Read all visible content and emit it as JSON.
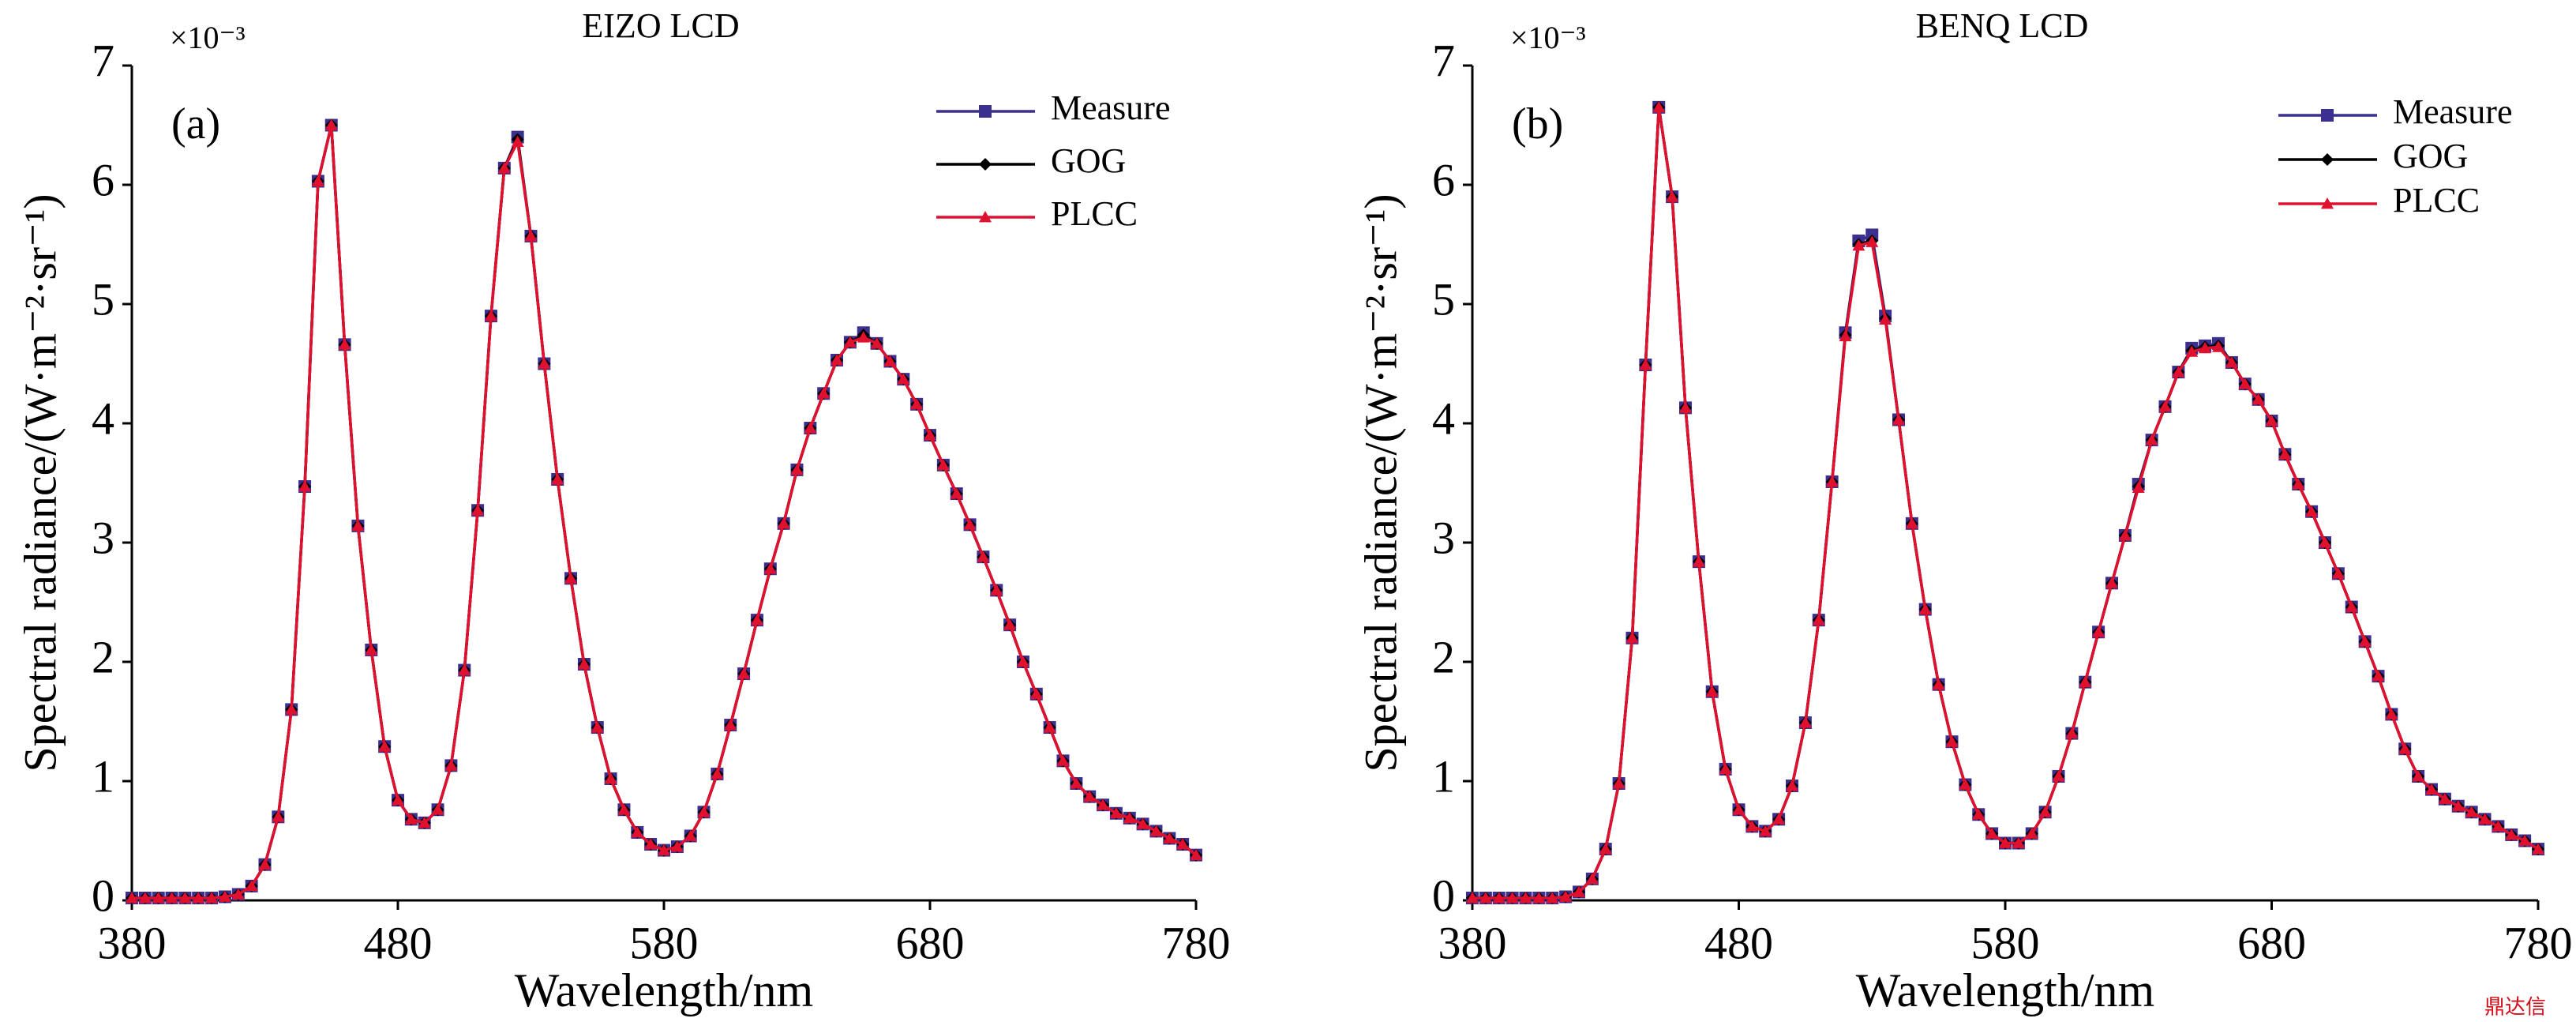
{
  "watermark": "鼎达信",
  "chart_data": [
    {
      "type": "line",
      "title": "EIZO LCD",
      "panel": "(a)",
      "multiplier": "×10⁻³",
      "x_label": "Wavelength/nm",
      "y_label": "Spectral radiance/(W·m⁻²·sr⁻¹)",
      "xlim": [
        380,
        780
      ],
      "xticks": [
        380,
        480,
        580,
        680,
        780
      ],
      "ylim": [
        0,
        7
      ],
      "yticks": [
        0,
        1,
        2,
        3,
        4,
        5,
        6,
        7
      ],
      "x": [
        380,
        385,
        390,
        395,
        400,
        405,
        410,
        415,
        420,
        425,
        430,
        435,
        440,
        445,
        450,
        455,
        460,
        465,
        470,
        475,
        480,
        485,
        490,
        495,
        500,
        505,
        510,
        515,
        520,
        525,
        530,
        535,
        540,
        545,
        550,
        555,
        560,
        565,
        570,
        575,
        580,
        585,
        590,
        595,
        600,
        605,
        610,
        615,
        620,
        625,
        630,
        635,
        640,
        645,
        650,
        655,
        660,
        665,
        670,
        675,
        680,
        685,
        690,
        695,
        700,
        705,
        710,
        715,
        720,
        725,
        730,
        735,
        740,
        745,
        750,
        755,
        760,
        765,
        770,
        775,
        780
      ],
      "series": [
        {
          "name": "Measure",
          "color": "#3b2f8f",
          "marker": "square",
          "values": [
            0.02,
            0.02,
            0.02,
            0.02,
            0.02,
            0.02,
            0.02,
            0.03,
            0.05,
            0.12,
            0.3,
            0.7,
            1.6,
            3.47,
            6.03,
            6.5,
            4.66,
            3.14,
            2.1,
            1.29,
            0.84,
            0.68,
            0.65,
            0.76,
            1.13,
            1.93,
            3.27,
            4.9,
            6.14,
            6.4,
            5.57,
            4.5,
            3.53,
            2.7,
            1.98,
            1.45,
            1.02,
            0.76,
            0.57,
            0.47,
            0.42,
            0.45,
            0.54,
            0.74,
            1.06,
            1.47,
            1.9,
            2.35,
            2.78,
            3.16,
            3.61,
            3.96,
            4.25,
            4.53,
            4.68,
            4.76,
            4.67,
            4.52,
            4.37,
            4.16,
            3.9,
            3.65,
            3.41,
            3.15,
            2.88,
            2.6,
            2.31,
            2.0,
            1.73,
            1.45,
            1.17,
            0.98,
            0.87,
            0.8,
            0.73,
            0.69,
            0.64,
            0.58,
            0.52,
            0.47,
            0.38
          ]
        },
        {
          "name": "GOG",
          "color": "#000000",
          "marker": "diamond",
          "values": [
            0.02,
            0.02,
            0.02,
            0.02,
            0.02,
            0.02,
            0.02,
            0.03,
            0.05,
            0.12,
            0.3,
            0.7,
            1.6,
            3.47,
            6.03,
            6.5,
            4.66,
            3.14,
            2.1,
            1.29,
            0.84,
            0.68,
            0.65,
            0.76,
            1.13,
            1.93,
            3.27,
            4.9,
            6.14,
            6.38,
            5.57,
            4.5,
            3.53,
            2.7,
            1.98,
            1.45,
            1.02,
            0.76,
            0.57,
            0.47,
            0.42,
            0.45,
            0.54,
            0.74,
            1.06,
            1.47,
            1.9,
            2.35,
            2.78,
            3.16,
            3.61,
            3.96,
            4.25,
            4.53,
            4.68,
            4.74,
            4.67,
            4.52,
            4.37,
            4.16,
            3.9,
            3.65,
            3.41,
            3.15,
            2.88,
            2.6,
            2.31,
            2.0,
            1.73,
            1.45,
            1.17,
            0.98,
            0.87,
            0.8,
            0.73,
            0.69,
            0.64,
            0.58,
            0.52,
            0.47,
            0.38
          ]
        },
        {
          "name": "PLCC",
          "color": "#e0102f",
          "marker": "triangle",
          "values": [
            0.02,
            0.02,
            0.02,
            0.02,
            0.02,
            0.02,
            0.02,
            0.03,
            0.05,
            0.12,
            0.3,
            0.7,
            1.6,
            3.47,
            6.03,
            6.5,
            4.66,
            3.14,
            2.1,
            1.29,
            0.84,
            0.68,
            0.65,
            0.76,
            1.13,
            1.93,
            3.27,
            4.9,
            6.14,
            6.36,
            5.57,
            4.5,
            3.53,
            2.7,
            1.98,
            1.45,
            1.02,
            0.76,
            0.57,
            0.47,
            0.42,
            0.45,
            0.54,
            0.74,
            1.06,
            1.47,
            1.9,
            2.35,
            2.78,
            3.16,
            3.61,
            3.96,
            4.25,
            4.53,
            4.68,
            4.72,
            4.67,
            4.52,
            4.37,
            4.16,
            3.9,
            3.65,
            3.41,
            3.15,
            2.88,
            2.6,
            2.31,
            2.0,
            1.73,
            1.45,
            1.17,
            0.98,
            0.87,
            0.8,
            0.73,
            0.69,
            0.64,
            0.58,
            0.52,
            0.47,
            0.38
          ]
        }
      ]
    },
    {
      "type": "line",
      "title": "BENQ LCD",
      "panel": "(b)",
      "multiplier": "×10⁻³",
      "x_label": "Wavelength/nm",
      "y_label": "Spectral radiance/(W·m⁻²·sr⁻¹)",
      "xlim": [
        380,
        780
      ],
      "xticks": [
        380,
        480,
        580,
        680,
        780
      ],
      "ylim": [
        0,
        7
      ],
      "yticks": [
        0,
        1,
        2,
        3,
        4,
        5,
        6,
        7
      ],
      "x": [
        380,
        385,
        390,
        395,
        400,
        405,
        410,
        415,
        420,
        425,
        430,
        435,
        440,
        445,
        450,
        455,
        460,
        465,
        470,
        475,
        480,
        485,
        490,
        495,
        500,
        505,
        510,
        515,
        520,
        525,
        530,
        535,
        540,
        545,
        550,
        555,
        560,
        565,
        570,
        575,
        580,
        585,
        590,
        595,
        600,
        605,
        610,
        615,
        620,
        625,
        630,
        635,
        640,
        645,
        650,
        655,
        660,
        665,
        670,
        675,
        680,
        685,
        690,
        695,
        700,
        705,
        710,
        715,
        720,
        725,
        730,
        735,
        740,
        745,
        750,
        755,
        760,
        765,
        770,
        775,
        780
      ],
      "series": [
        {
          "name": "Measure",
          "color": "#3b2f8f",
          "marker": "square",
          "values": [
            0.02,
            0.02,
            0.02,
            0.02,
            0.02,
            0.02,
            0.02,
            0.03,
            0.07,
            0.18,
            0.43,
            0.98,
            2.2,
            4.49,
            6.65,
            5.9,
            4.13,
            2.84,
            1.75,
            1.1,
            0.76,
            0.62,
            0.58,
            0.68,
            0.96,
            1.49,
            2.35,
            3.51,
            4.76,
            5.53,
            5.58,
            4.9,
            4.03,
            3.16,
            2.44,
            1.81,
            1.33,
            0.97,
            0.72,
            0.56,
            0.48,
            0.48,
            0.56,
            0.74,
            1.04,
            1.4,
            1.83,
            2.25,
            2.66,
            3.06,
            3.49,
            3.86,
            4.14,
            4.43,
            4.63,
            4.65,
            4.67,
            4.51,
            4.33,
            4.2,
            4.02,
            3.74,
            3.49,
            3.26,
            3.0,
            2.74,
            2.46,
            2.17,
            1.88,
            1.56,
            1.27,
            1.04,
            0.93,
            0.85,
            0.79,
            0.74,
            0.68,
            0.62,
            0.55,
            0.5,
            0.43
          ]
        },
        {
          "name": "GOG",
          "color": "#000000",
          "marker": "diamond",
          "values": [
            0.02,
            0.02,
            0.02,
            0.02,
            0.02,
            0.02,
            0.02,
            0.03,
            0.07,
            0.18,
            0.43,
            0.98,
            2.2,
            4.49,
            6.65,
            5.9,
            4.13,
            2.84,
            1.75,
            1.1,
            0.76,
            0.62,
            0.58,
            0.68,
            0.96,
            1.49,
            2.35,
            3.51,
            4.74,
            5.5,
            5.53,
            4.88,
            4.03,
            3.16,
            2.44,
            1.81,
            1.33,
            0.97,
            0.72,
            0.56,
            0.48,
            0.48,
            0.56,
            0.74,
            1.04,
            1.4,
            1.83,
            2.25,
            2.66,
            3.06,
            3.47,
            3.86,
            4.14,
            4.43,
            4.61,
            4.64,
            4.65,
            4.51,
            4.33,
            4.2,
            4.02,
            3.74,
            3.49,
            3.26,
            3.0,
            2.74,
            2.46,
            2.17,
            1.88,
            1.56,
            1.27,
            1.04,
            0.93,
            0.85,
            0.79,
            0.74,
            0.68,
            0.62,
            0.55,
            0.5,
            0.43
          ]
        },
        {
          "name": "PLCC",
          "color": "#e0102f",
          "marker": "triangle",
          "values": [
            0.02,
            0.02,
            0.02,
            0.02,
            0.02,
            0.02,
            0.02,
            0.03,
            0.07,
            0.18,
            0.43,
            0.98,
            2.2,
            4.49,
            6.65,
            5.9,
            4.13,
            2.84,
            1.75,
            1.1,
            0.76,
            0.62,
            0.58,
            0.68,
            0.96,
            1.49,
            2.35,
            3.51,
            4.73,
            5.49,
            5.52,
            4.87,
            4.03,
            3.16,
            2.44,
            1.81,
            1.33,
            0.97,
            0.72,
            0.56,
            0.48,
            0.48,
            0.56,
            0.74,
            1.04,
            1.4,
            1.83,
            2.25,
            2.66,
            3.06,
            3.46,
            3.86,
            4.14,
            4.43,
            4.6,
            4.63,
            4.64,
            4.51,
            4.33,
            4.2,
            4.02,
            3.74,
            3.49,
            3.26,
            3.0,
            2.74,
            2.46,
            2.17,
            1.88,
            1.56,
            1.27,
            1.04,
            0.93,
            0.85,
            0.79,
            0.74,
            0.68,
            0.62,
            0.55,
            0.5,
            0.43
          ]
        }
      ]
    }
  ]
}
